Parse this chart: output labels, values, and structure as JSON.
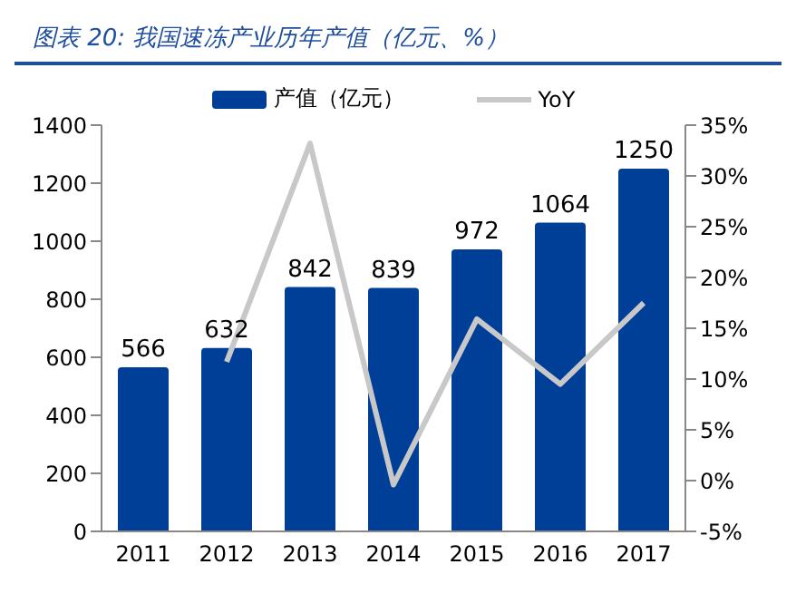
{
  "chart_data": {
    "type": "bar",
    "title": "图表 20:  我国速冻产业历年产值（亿元、%）",
    "categories": [
      "2011",
      "2012",
      "2013",
      "2014",
      "2015",
      "2016",
      "2017"
    ],
    "series": [
      {
        "name": "产值（亿元）",
        "color": "#003f98",
        "values": [
          566,
          632,
          842,
          839,
          972,
          1064,
          1250
        ],
        "value_labels": [
          "566",
          "632",
          "842",
          "839",
          "972",
          "1064",
          "1250"
        ]
      },
      {
        "name": "YoY",
        "type": "line",
        "axis": "y2",
        "color": "#c8c8c8",
        "values": [
          null,
          11.7,
          33.2,
          -0.4,
          15.9,
          9.5,
          17.5
        ]
      }
    ],
    "ylim": [
      0,
      1400
    ],
    "yticks": [
      0,
      200,
      400,
      600,
      800,
      1000,
      1200,
      1400
    ],
    "y2lim": [
      -5,
      35
    ],
    "y2ticks": [
      {
        "value": -5,
        "label": "-5%"
      },
      {
        "value": 0,
        "label": "0%"
      },
      {
        "value": 5,
        "label": "5%"
      },
      {
        "value": 10,
        "label": "10%"
      },
      {
        "value": 15,
        "label": "15%"
      },
      {
        "value": 20,
        "label": "20%"
      },
      {
        "value": 25,
        "label": "25%"
      },
      {
        "value": 30,
        "label": "30%"
      },
      {
        "value": 35,
        "label": "35%"
      }
    ],
    "grid": false,
    "legend": "top",
    "marker": "none",
    "line_style": "solid"
  }
}
